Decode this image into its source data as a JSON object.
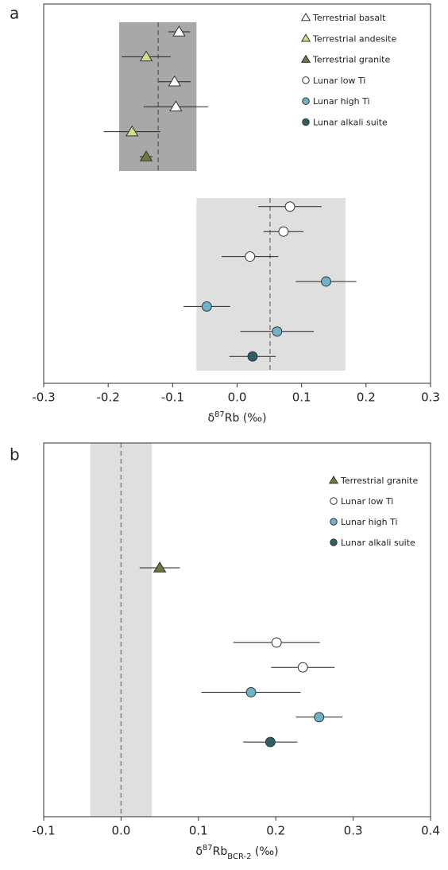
{
  "chart_data": [
    {
      "type": "errorbar",
      "label": "a",
      "x_label": {
        "base": "δ",
        "sup": "87",
        "main": "Rb",
        "unit": " (‰)"
      },
      "xlim": [
        -0.3,
        0.3
      ],
      "xticks": [
        -0.3,
        -0.2,
        -0.1,
        {
          "value": 0,
          "label": "0.0"
        },
        0.1,
        0.2,
        0.3
      ],
      "categories": [
        null,
        null,
        null,
        null,
        null,
        null,
        null,
        null,
        null,
        null,
        null,
        null,
        null,
        null
      ],
      "bands": [
        {
          "x": [
            -0.183,
            -0.063
          ],
          "mean": -0.1225,
          "color": "#a8a8a8"
        },
        {
          "x": [
            -0.063,
            0.168
          ],
          "mean": 0.051,
          "color": "#e0dfdf"
        }
      ],
      "legend": "upper right",
      "series": [
        {
          "name": "Terrestrial basalt",
          "marker": "triangle",
          "color": "#ffffff",
          "values": [
            -0.09,
            null,
            -0.097,
            -0.095,
            null,
            null,
            null,
            null,
            null,
            null,
            null,
            null,
            null,
            null
          ],
          "errors": [
            0.017,
            null,
            0.025,
            0.05,
            null,
            null,
            null,
            null,
            null,
            null,
            null,
            null,
            null,
            null
          ]
        },
        {
          "name": "Terrestrial andesite",
          "marker": "triangle",
          "color": "#d4dd8a",
          "values": [
            null,
            -0.141,
            null,
            null,
            -0.163,
            null,
            null,
            null,
            null,
            null,
            null,
            null,
            null,
            null
          ],
          "errors": [
            null,
            0.038,
            null,
            null,
            0.044,
            null,
            null,
            null,
            null,
            null,
            null,
            null,
            null,
            null
          ]
        },
        {
          "name": "Terrestrial granite",
          "marker": "triangle",
          "color": "#6b7a3a",
          "values": [
            null,
            null,
            null,
            null,
            null,
            -0.141,
            null,
            null,
            null,
            null,
            null,
            null,
            null,
            null
          ],
          "errors": [
            null,
            null,
            null,
            null,
            null,
            0.01,
            null,
            null,
            null,
            null,
            null,
            null,
            null,
            null
          ]
        },
        {
          "name": "Lunar low Ti",
          "marker": "circle",
          "color": "#ffffff",
          "values": [
            null,
            null,
            null,
            null,
            null,
            null,
            null,
            0.082,
            0.072,
            0.02,
            null,
            null,
            null,
            null
          ],
          "errors": [
            null,
            null,
            null,
            null,
            null,
            null,
            null,
            0.049,
            0.031,
            0.044,
            null,
            null,
            null,
            null
          ]
        },
        {
          "name": "Lunar high Ti",
          "marker": "circle",
          "color": "#6fb3c8",
          "values": [
            null,
            null,
            null,
            null,
            null,
            null,
            null,
            null,
            null,
            null,
            0.138,
            -0.047,
            0.062,
            null
          ],
          "errors": [
            null,
            null,
            null,
            null,
            null,
            null,
            null,
            null,
            null,
            null,
            0.047,
            0.036,
            0.057,
            null
          ]
        },
        {
          "name": "Lunar alkali suite",
          "marker": "circle",
          "color": "#2e5f66",
          "values": [
            null,
            null,
            null,
            null,
            null,
            null,
            null,
            null,
            null,
            null,
            null,
            null,
            null,
            0.024
          ],
          "errors": [
            null,
            null,
            null,
            null,
            null,
            null,
            null,
            null,
            null,
            null,
            null,
            null,
            null,
            0.036
          ]
        }
      ]
    },
    {
      "type": "errorbar",
      "label": "b",
      "x_label": {
        "base": "δ",
        "sup": "87",
        "main": "Rb",
        "sub": "BCR-2",
        "unit": " (‰)"
      },
      "xlim": [
        -0.1,
        0.4
      ],
      "xticks": [
        -0.1,
        {
          "value": 0,
          "label": "0.0"
        },
        0.1,
        0.2,
        0.3,
        0.4
      ],
      "categories": [
        null,
        null,
        null,
        null,
        null,
        null,
        null,
        null
      ],
      "bands": [
        {
          "x": [
            -0.04,
            0.04
          ],
          "mean": 0,
          "color": "#e0dfdf"
        }
      ],
      "legend": "upper right",
      "series": [
        {
          "name": "Terrestrial granite",
          "marker": "triangle",
          "color": "#6b7a3a",
          "values": [
            0.05,
            null,
            null,
            null,
            null,
            null,
            null,
            null
          ],
          "errors": [
            0.026,
            null,
            null,
            null,
            null,
            null,
            null,
            null
          ]
        },
        {
          "name": "Lunar low Ti",
          "marker": "circle",
          "color": "#ffffff",
          "values": [
            null,
            null,
            null,
            0.201,
            0.235,
            null,
            null,
            null
          ],
          "errors": [
            null,
            null,
            null,
            0.056,
            0.041,
            null,
            null,
            null
          ]
        },
        {
          "name": "Lunar high Ti",
          "marker": "circle",
          "color": "#6fb3c8",
          "values": [
            null,
            null,
            null,
            null,
            null,
            0.168,
            0.256,
            null
          ],
          "errors": [
            null,
            null,
            null,
            null,
            null,
            0.064,
            0.03,
            null
          ]
        },
        {
          "name": "Lunar alkali suite",
          "marker": "circle",
          "color": "#2e5f66",
          "values": [
            null,
            null,
            null,
            null,
            null,
            null,
            null,
            0.193
          ],
          "errors": [
            null,
            null,
            null,
            null,
            null,
            null,
            null,
            0.035
          ]
        }
      ]
    }
  ]
}
